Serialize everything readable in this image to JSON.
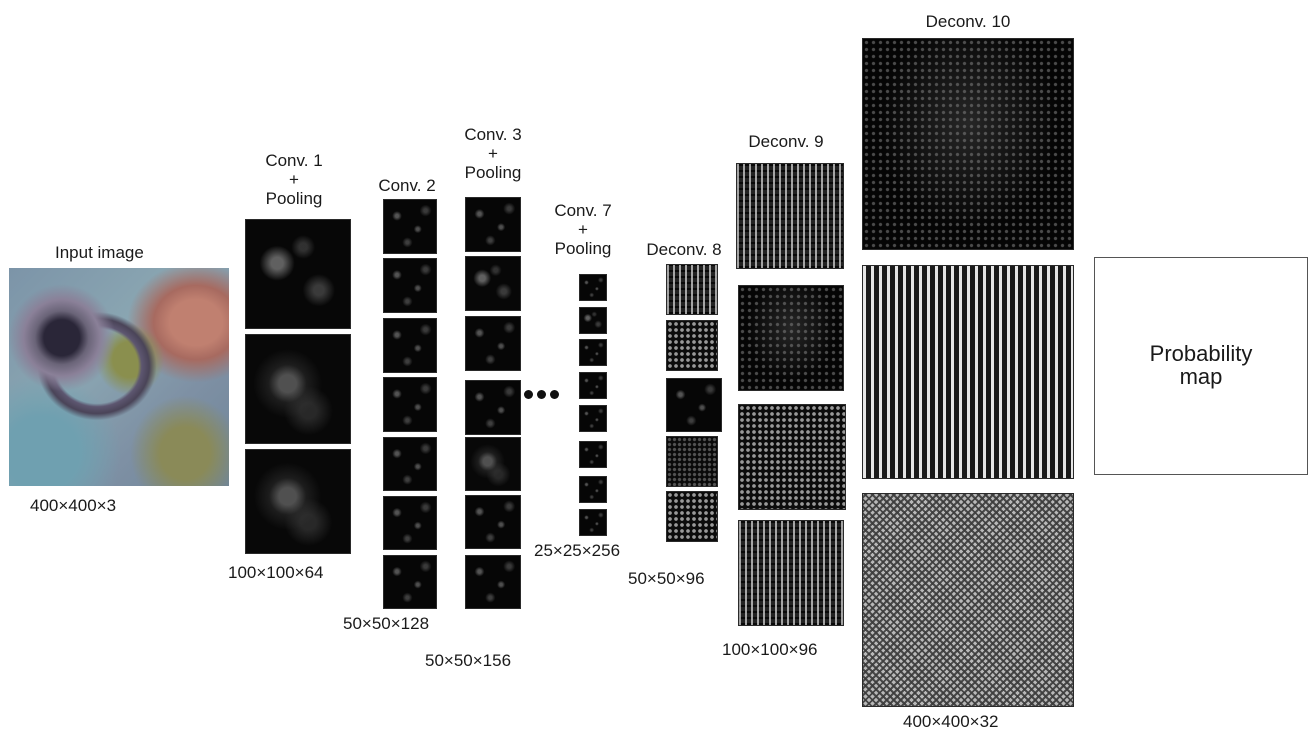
{
  "input": {
    "title": "Input image",
    "dims": "400×400×3"
  },
  "conv1": {
    "title": [
      "Conv. 1",
      "+",
      "Pooling"
    ],
    "dims": "100×100×64"
  },
  "conv2": {
    "title": "Conv. 2",
    "dims": "50×50×128"
  },
  "conv3": {
    "title": [
      "Conv. 3",
      "+",
      "Pooling"
    ],
    "dims": "50×50×156"
  },
  "conv7": {
    "title": [
      "Conv. 7",
      "+",
      "Pooling"
    ],
    "dims": "25×25×256"
  },
  "deconv8": {
    "title": "Deconv. 8",
    "dims": "50×50×96"
  },
  "deconv9": {
    "title": "Deconv. 9",
    "dims": "100×100×96"
  },
  "deconv10": {
    "title": "Deconv. 10",
    "dims": "400×400×32"
  },
  "output": {
    "title": "Probability\nmap"
  },
  "colors": {
    "background": "#ffffff",
    "text": "#1a1a1a",
    "feature_map": "#050505"
  }
}
